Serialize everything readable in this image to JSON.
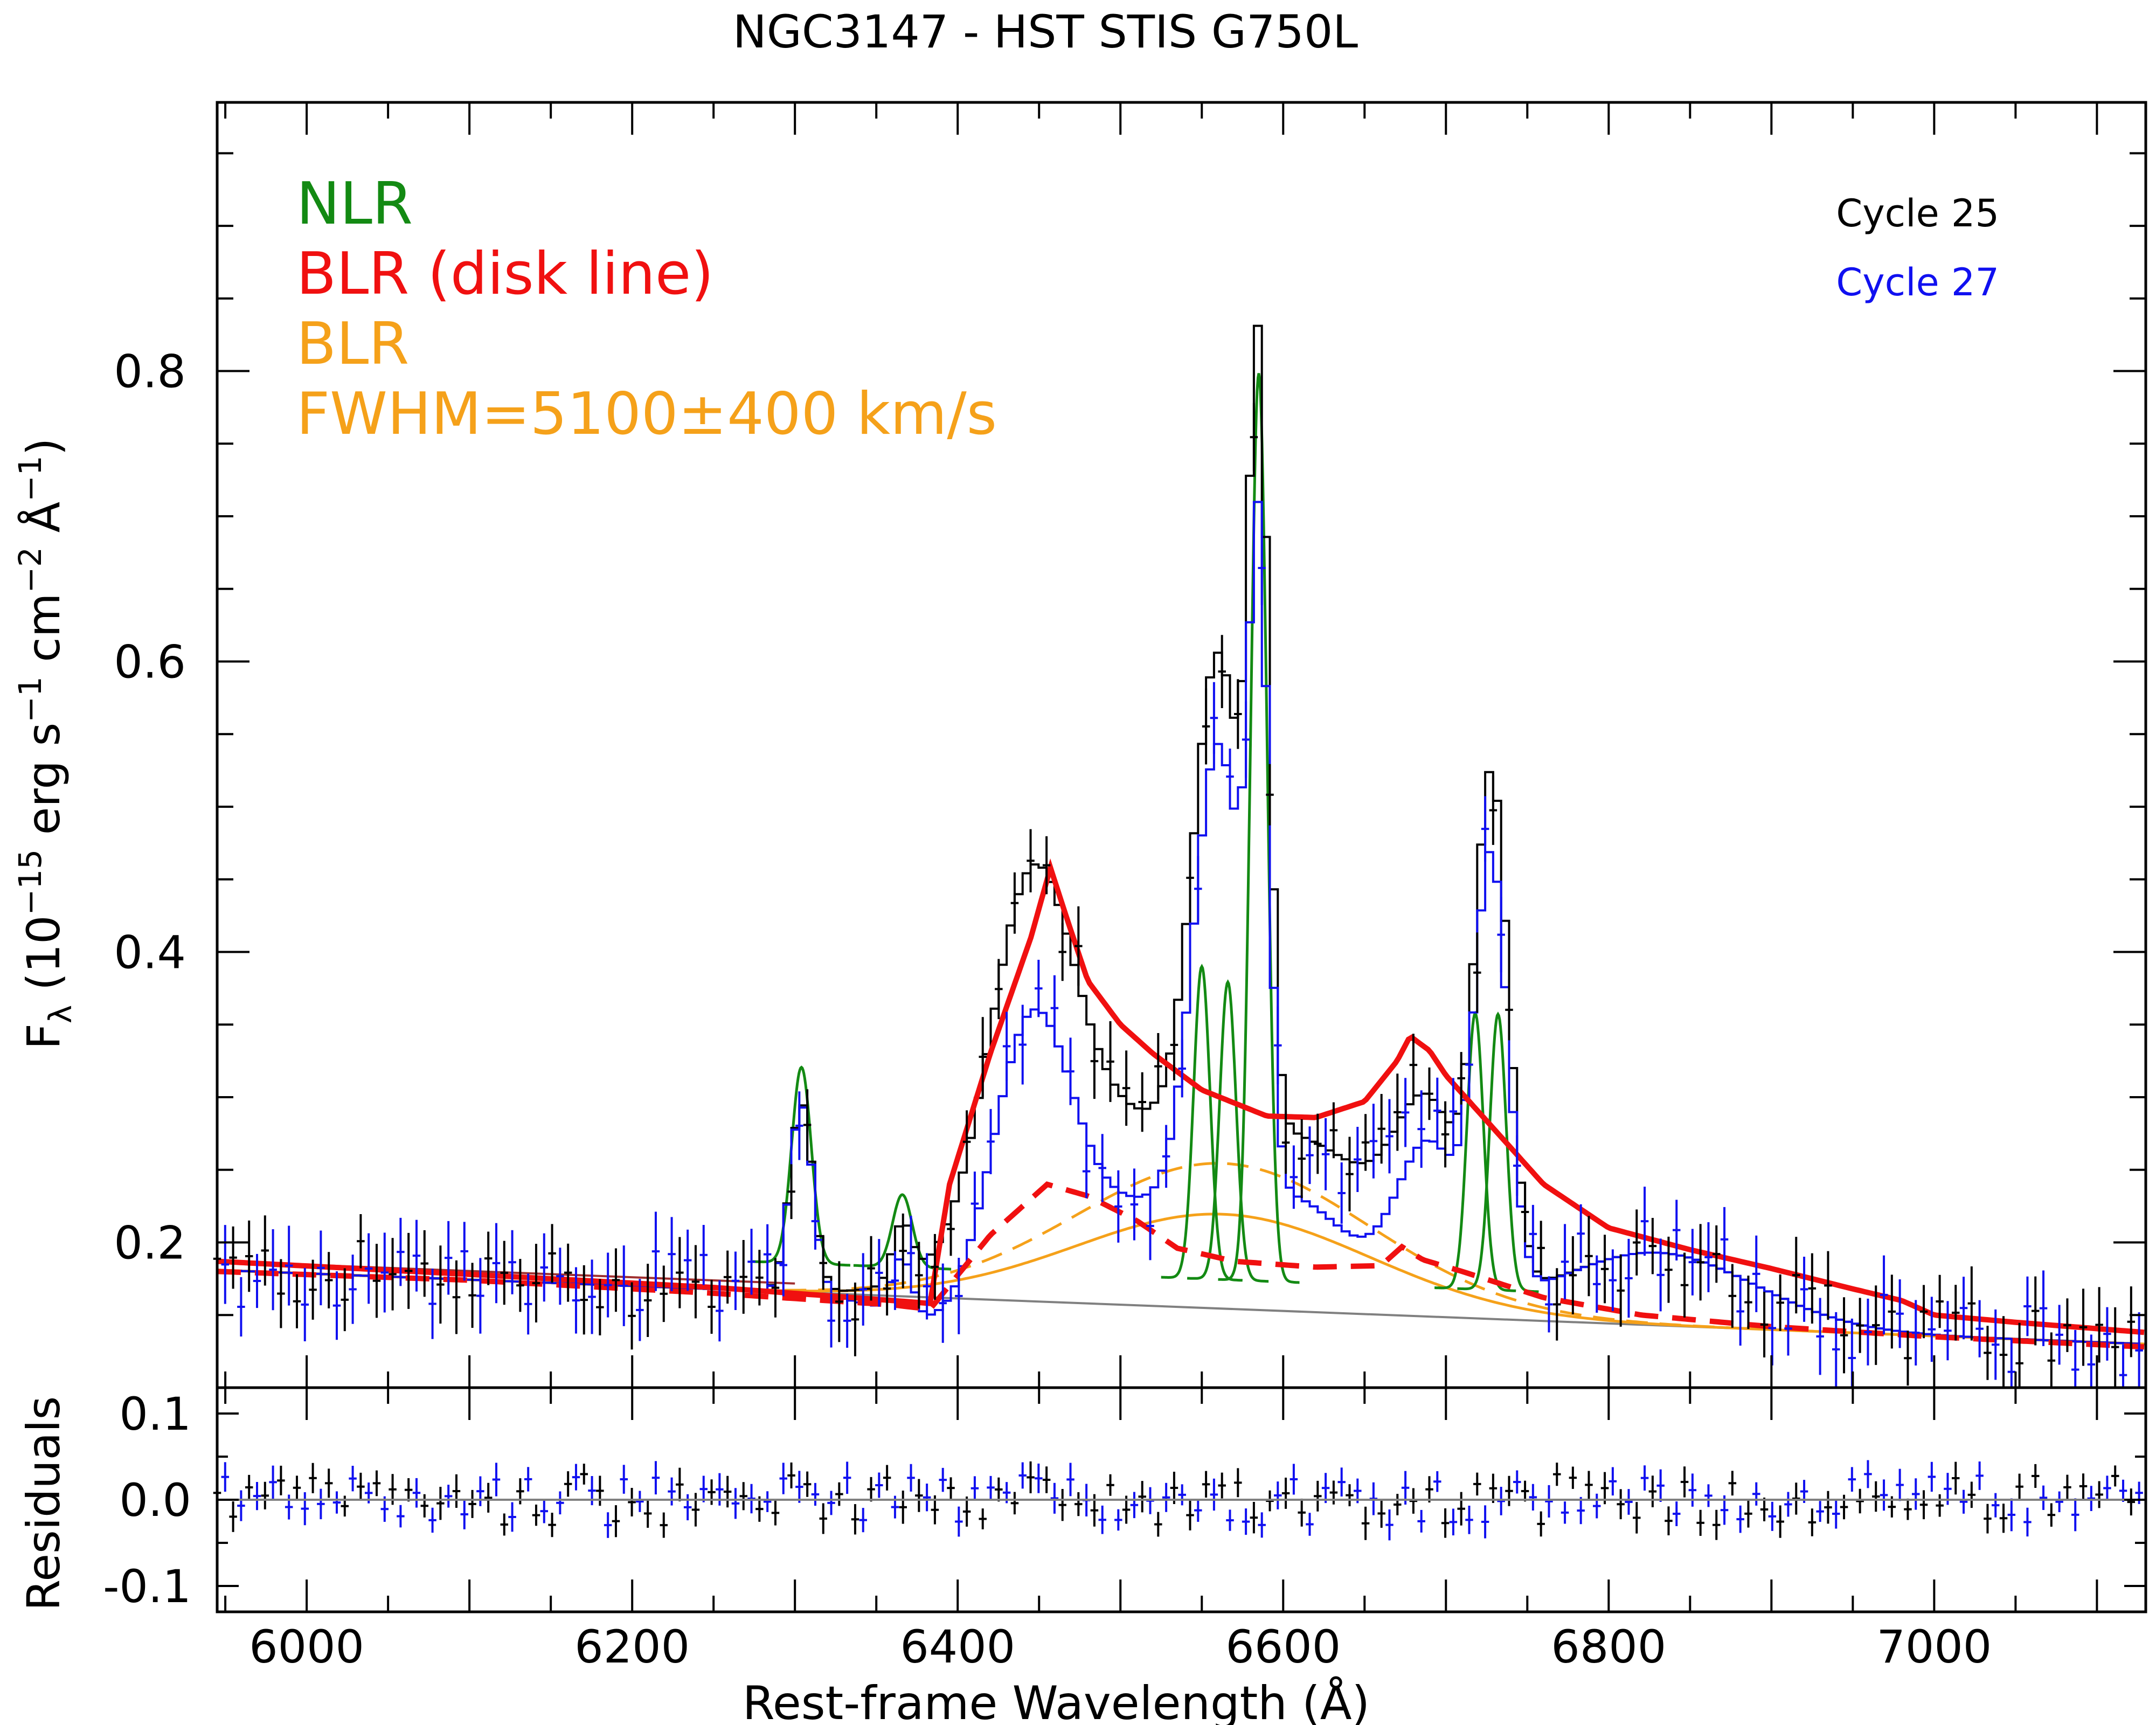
{
  "chart_data": {
    "type": "line",
    "title": "NGC3147 - HST STIS G750L",
    "xlabel": "Rest-frame Wavelength (Å)",
    "ylabel_main": {
      "prefix": "F",
      "sub": "λ",
      "paren_open": " (10",
      "exp1": "−15",
      "erg": " erg s",
      "exp2": "−1",
      "cm": " cm",
      "exp3": "−2",
      "ang": " Å",
      "exp4": "−1",
      "close": ")"
    },
    "ylabel_resid": "Residuals",
    "xlim": [
      5945,
      7130
    ],
    "ylim_main": [
      0.1,
      0.985
    ],
    "ylim_resid": [
      -0.13,
      0.13
    ],
    "x_ticks": [
      {
        "value": 6000,
        "label": "6000"
      },
      {
        "value": 6200,
        "label": "6200"
      },
      {
        "value": 6400,
        "label": "6400"
      },
      {
        "value": 6600,
        "label": "6600"
      },
      {
        "value": 6800,
        "label": "6800"
      },
      {
        "value": 7000,
        "label": "7000"
      }
    ],
    "y_ticks_main": [
      {
        "value": 0.2,
        "label": "0.2"
      },
      {
        "value": 0.4,
        "label": "0.4"
      },
      {
        "value": 0.6,
        "label": "0.6"
      },
      {
        "value": 0.8,
        "label": "0.8"
      }
    ],
    "y_ticks_resid": [
      {
        "value": 0.1,
        "label": "0.1"
      },
      {
        "value": 0.0,
        "label": "0.0"
      },
      {
        "value": -0.1,
        "label": "-0.1"
      }
    ],
    "legend_left": [
      {
        "label": "NLR",
        "color": "#138a13"
      },
      {
        "label": "BLR (disk line)",
        "color": "#f01010"
      },
      {
        "label": "BLR",
        "color": "#f5a11a"
      },
      {
        "label": "FWHM=5100±400 km/s",
        "color": "#f5a11a"
      }
    ],
    "legend_right": [
      {
        "label": "Cycle 25",
        "color": "#000000"
      },
      {
        "label": "Cycle 27",
        "color": "#1010f0"
      }
    ],
    "continuum": {
      "x": [
        5945,
        7130
      ],
      "y": [
        0.181,
        0.13
      ]
    },
    "blr_gauss": {
      "center": 6563,
      "sigma": 90,
      "amp_solid": 0.065,
      "amp_dashed": 0.1
    },
    "nlr_lines": [
      {
        "center": 6304,
        "sigma": 6,
        "amp": 0.135
      },
      {
        "center": 6366,
        "sigma": 6,
        "amp": 0.05
      },
      {
        "center": 6550,
        "sigma": 5,
        "amp": 0.215
      },
      {
        "center": 6566,
        "sigma": 5,
        "amp": 0.205
      },
      {
        "center": 6585,
        "sigma": 5,
        "amp": 0.625
      },
      {
        "center": 6718,
        "sigma": 5,
        "amp": 0.19
      },
      {
        "center": 6732,
        "sigma": 5,
        "amp": 0.19
      }
    ],
    "disk_line": {
      "x": [
        5945,
        6100,
        6250,
        6360,
        6383,
        6395,
        6420,
        6445,
        6457,
        6468,
        6480,
        6500,
        6520,
        6550,
        6590,
        6620,
        6650,
        6670,
        6678,
        6690,
        6700,
        6720,
        6760,
        6800,
        6850,
        6900,
        6950,
        6980,
        7000,
        7050,
        7130
      ],
      "y": [
        0.187,
        0.178,
        0.169,
        0.16,
        0.158,
        0.24,
        0.33,
        0.41,
        0.458,
        0.42,
        0.38,
        0.35,
        0.33,
        0.305,
        0.287,
        0.286,
        0.297,
        0.325,
        0.342,
        0.332,
        0.315,
        0.29,
        0.24,
        0.21,
        0.195,
        0.182,
        0.168,
        0.16,
        0.15,
        0.145,
        0.138
      ]
    },
    "disk_dashed": {
      "x": [
        5945,
        6100,
        6250,
        6360,
        6383,
        6420,
        6455,
        6480,
        6510,
        6535,
        6570,
        6620,
        6660,
        6673,
        6686,
        6710,
        6760,
        6820,
        6900,
        7000,
        7130
      ],
      "y": [
        0.18,
        0.174,
        0.165,
        0.157,
        0.154,
        0.205,
        0.24,
        0.232,
        0.215,
        0.196,
        0.187,
        0.183,
        0.184,
        0.197,
        0.188,
        0.18,
        0.162,
        0.15,
        0.142,
        0.135,
        0.128
      ]
    },
    "data_bumps": [
      {
        "center": 6445,
        "sigma": 25,
        "amp": 0.22
      },
      {
        "center": 6560,
        "sigma": 15,
        "amp": 0.33
      },
      {
        "center": 6585,
        "sigma": 6,
        "amp": 0.4
      },
      {
        "center": 6500,
        "sigma": 60,
        "amp": 0.12
      },
      {
        "center": 6620,
        "sigma": 50,
        "amp": 0.1
      },
      {
        "center": 6690,
        "sigma": 20,
        "amp": 0.11
      },
      {
        "center": 6728,
        "sigma": 10,
        "amp": 0.29
      },
      {
        "center": 6304,
        "sigma": 7,
        "amp": 0.13
      },
      {
        "center": 6366,
        "sigma": 6,
        "amp": 0.04
      },
      {
        "center": 6830,
        "sigma": 60,
        "amp": 0.05
      }
    ]
  },
  "colors": {
    "cycle25": "#000000",
    "cycle27": "#1010f0",
    "nlr": "#138a13",
    "disk": "#f01010",
    "blr": "#f5a11a",
    "continuum": "#808080",
    "continuum_top": "#a03030"
  }
}
